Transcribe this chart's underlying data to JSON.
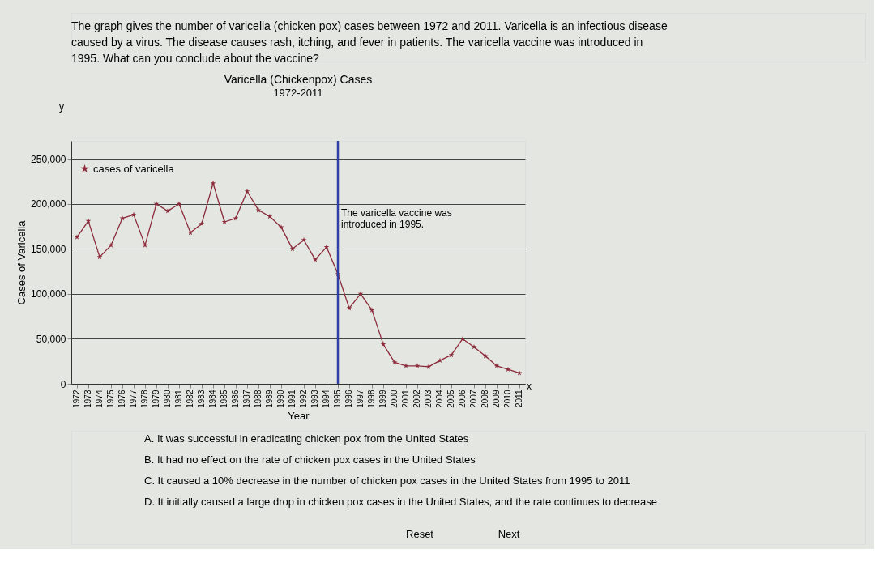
{
  "chart_data": {
    "type": "line",
    "title": "Varicella (Chickenpox) Cases",
    "subtitle": "1972-2011",
    "xlabel": "Year",
    "ylabel": "Cases of Varicella",
    "categories": [
      "1972",
      "1973",
      "1974",
      "1975",
      "1976",
      "1977",
      "1978",
      "1979",
      "1980",
      "1981",
      "1982",
      "1983",
      "1984",
      "1985",
      "1986",
      "1987",
      "1988",
      "1989",
      "1990",
      "1991",
      "1992",
      "1993",
      "1994",
      "1995",
      "1996",
      "1997",
      "1998",
      "1999",
      "2000",
      "2001",
      "2002",
      "2003",
      "2004",
      "2005",
      "2006",
      "2007",
      "2008",
      "2009",
      "2010",
      "2011"
    ],
    "series": [
      {
        "name": "cases of varicella",
        "color": "#8b2a3a",
        "values": [
          163000,
          181000,
          141000,
          154000,
          184000,
          188000,
          154000,
          200000,
          192000,
          200000,
          168000,
          178000,
          223000,
          180000,
          184000,
          214000,
          193000,
          186000,
          174000,
          150000,
          160000,
          138000,
          152000,
          122000,
          84000,
          100000,
          82000,
          44000,
          24000,
          20000,
          20000,
          19000,
          26000,
          32000,
          50000,
          41000,
          31000,
          20000,
          16000,
          12000
        ]
      }
    ],
    "ylim": [
      0,
      270000
    ],
    "yticks": [
      {
        "value": 0,
        "label": "0"
      },
      {
        "value": 50000,
        "label": "50,000"
      },
      {
        "value": 100000,
        "label": "100,000"
      },
      {
        "value": 150000,
        "label": "150,000"
      },
      {
        "value": 200000,
        "label": "200,000"
      },
      {
        "value": 250000,
        "label": "250,000"
      }
    ],
    "grid": "y",
    "legend": "left",
    "marker": "star",
    "line_style": "solid",
    "ref_lines": [
      {
        "axis": "x",
        "value": "1995",
        "label": "The varicella vaccine was introduced in 1995.",
        "color": "#2e3fa8"
      }
    ],
    "annotations": [
      "The graph gives the number of varicella (chicken pox) cases between 1972 and 2011. Varicella is an infectious disease caused by a virus. The disease causes rash, itching, and fever in patients. The varicella vaccine was introduced in 1995. What can you conclude about the vaccine?",
      "A. It was successful in eradicating chicken pox from the United States",
      "B. It had no effect on the rate of chicken pox cases in the United States",
      "C. It caused a 10% decrease in the number of chicken pox cases in the United States from 1995 to 2011",
      "D. It initially caused a large drop in chicken pox cases in the United States, and the rate continues to decrease",
      "Reset",
      "Next",
      "y",
      "x"
    ]
  }
}
